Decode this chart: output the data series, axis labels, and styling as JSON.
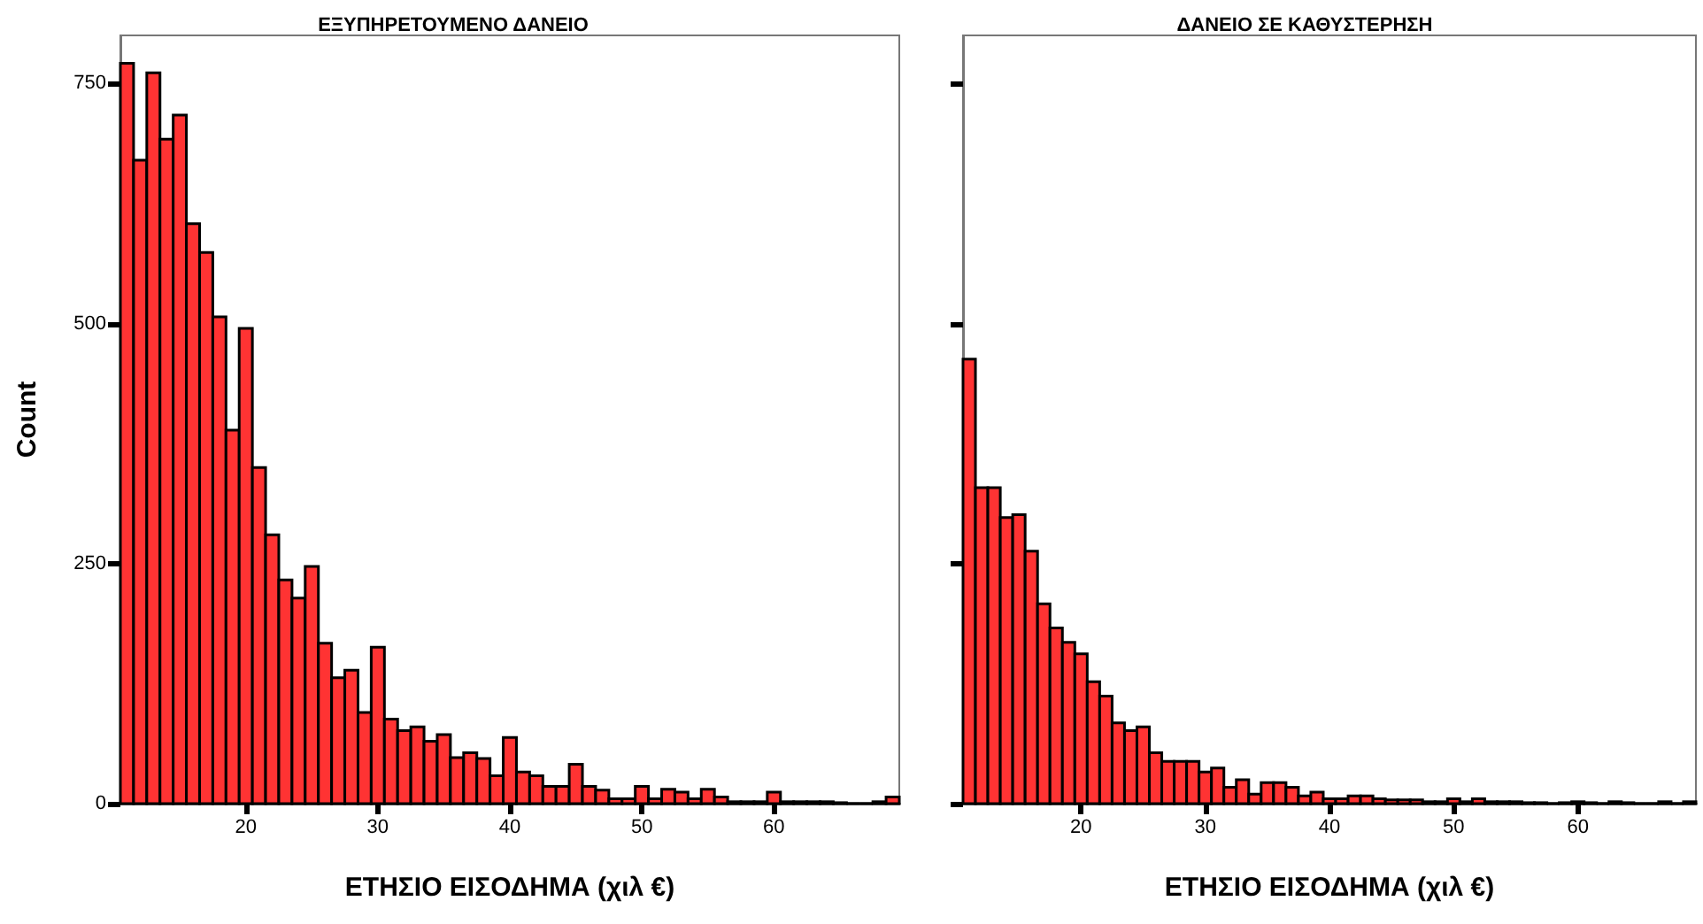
{
  "chart_data": [
    {
      "type": "histogram",
      "title": "ΕΞΥΠΗΡΕΤΟΥΜΕΝΟ ΔΑΝΕΙΟ",
      "xlabel": "ΕΤΗΣΙΟ ΕΙΣΟΔΗΜΑ (χιλ €)",
      "ylabel": "Count",
      "color": "#ff3333",
      "bins": [
        10.5,
        11.5,
        12.5,
        13.5,
        14.5,
        15.5,
        16.5,
        17.5,
        18.5,
        19.5,
        20.5,
        21.5,
        22.5,
        23.5,
        24.5,
        25.5,
        26.5,
        27.5,
        28.5,
        29.5,
        30.5,
        31.5,
        32.5,
        33.5,
        34.5,
        35.5,
        36.5,
        37.5,
        38.5,
        39.5,
        40.5,
        41.5,
        42.5,
        43.5,
        44.5,
        45.5,
        46.5,
        47.5,
        48.5,
        49.5,
        50.5,
        51.5,
        52.5,
        53.5,
        54.5,
        55.5,
        56.5,
        57.5,
        58.5,
        59.5,
        60.5,
        61.5,
        62.5,
        63.5,
        64.5,
        65.5,
        66.5,
        67.5,
        68.5,
        69.5
      ],
      "values": [
        771,
        670,
        761,
        692,
        717,
        604,
        574,
        507,
        389,
        495,
        350,
        280,
        233,
        214,
        247,
        167,
        131,
        139,
        95,
        163,
        88,
        76,
        80,
        65,
        72,
        48,
        53,
        47,
        29,
        69,
        33,
        29,
        18,
        18,
        41,
        18,
        14,
        5,
        5,
        18,
        5,
        15,
        12,
        5,
        15,
        7,
        2,
        2,
        2,
        12,
        2,
        2,
        2,
        2,
        1,
        0,
        0,
        2,
        7
      ],
      "xlim": [
        10.5,
        69.5
      ],
      "xticks": [
        20,
        30,
        40,
        50,
        60
      ],
      "ylim": [
        0,
        800
      ],
      "yticks": [
        0,
        250,
        500,
        750
      ],
      "grid": false
    },
    {
      "type": "histogram",
      "title": "ΔΑΝΕΙΟ ΣΕ ΚΑΘΥΣΤΕΡΗΣΗ",
      "xlabel": "ΕΤΗΣΙΟ ΕΙΣΟΔΗΜΑ (χιλ €)",
      "color": "#ff3333",
      "bins": [
        10.5,
        11.5,
        12.5,
        13.5,
        14.5,
        15.5,
        16.5,
        17.5,
        18.5,
        19.5,
        20.5,
        21.5,
        22.5,
        23.5,
        24.5,
        25.5,
        26.5,
        27.5,
        28.5,
        29.5,
        30.5,
        31.5,
        32.5,
        33.5,
        34.5,
        35.5,
        36.5,
        37.5,
        38.5,
        39.5,
        40.5,
        41.5,
        42.5,
        43.5,
        44.5,
        45.5,
        46.5,
        47.5,
        48.5,
        49.5,
        50.5,
        51.5,
        52.5,
        53.5,
        54.5,
        55.5,
        56.5,
        57.5,
        58.5,
        59.5,
        60.5,
        61.5,
        62.5,
        63.5,
        64.5,
        65.5,
        66.5,
        67.5,
        68.5,
        69.5
      ],
      "values": [
        463,
        329,
        329,
        298,
        301,
        263,
        208,
        183,
        168,
        156,
        127,
        112,
        84,
        76,
        80,
        53,
        44,
        44,
        44,
        33,
        37,
        17,
        25,
        10,
        22,
        22,
        17,
        8,
        12,
        5,
        5,
        8,
        8,
        5,
        4,
        4,
        4,
        2,
        2,
        5,
        2,
        5,
        2,
        2,
        2,
        1,
        1,
        0,
        1,
        2,
        1,
        0,
        2,
        1,
        0,
        0,
        2,
        0,
        2
      ],
      "xlim": [
        10.5,
        69.5
      ],
      "xticks": [
        20,
        30,
        40,
        50,
        60
      ],
      "ylim": [
        0,
        800
      ],
      "yticks": [
        0,
        250,
        500,
        750
      ],
      "tick_labels": "x",
      "grid": false
    }
  ]
}
